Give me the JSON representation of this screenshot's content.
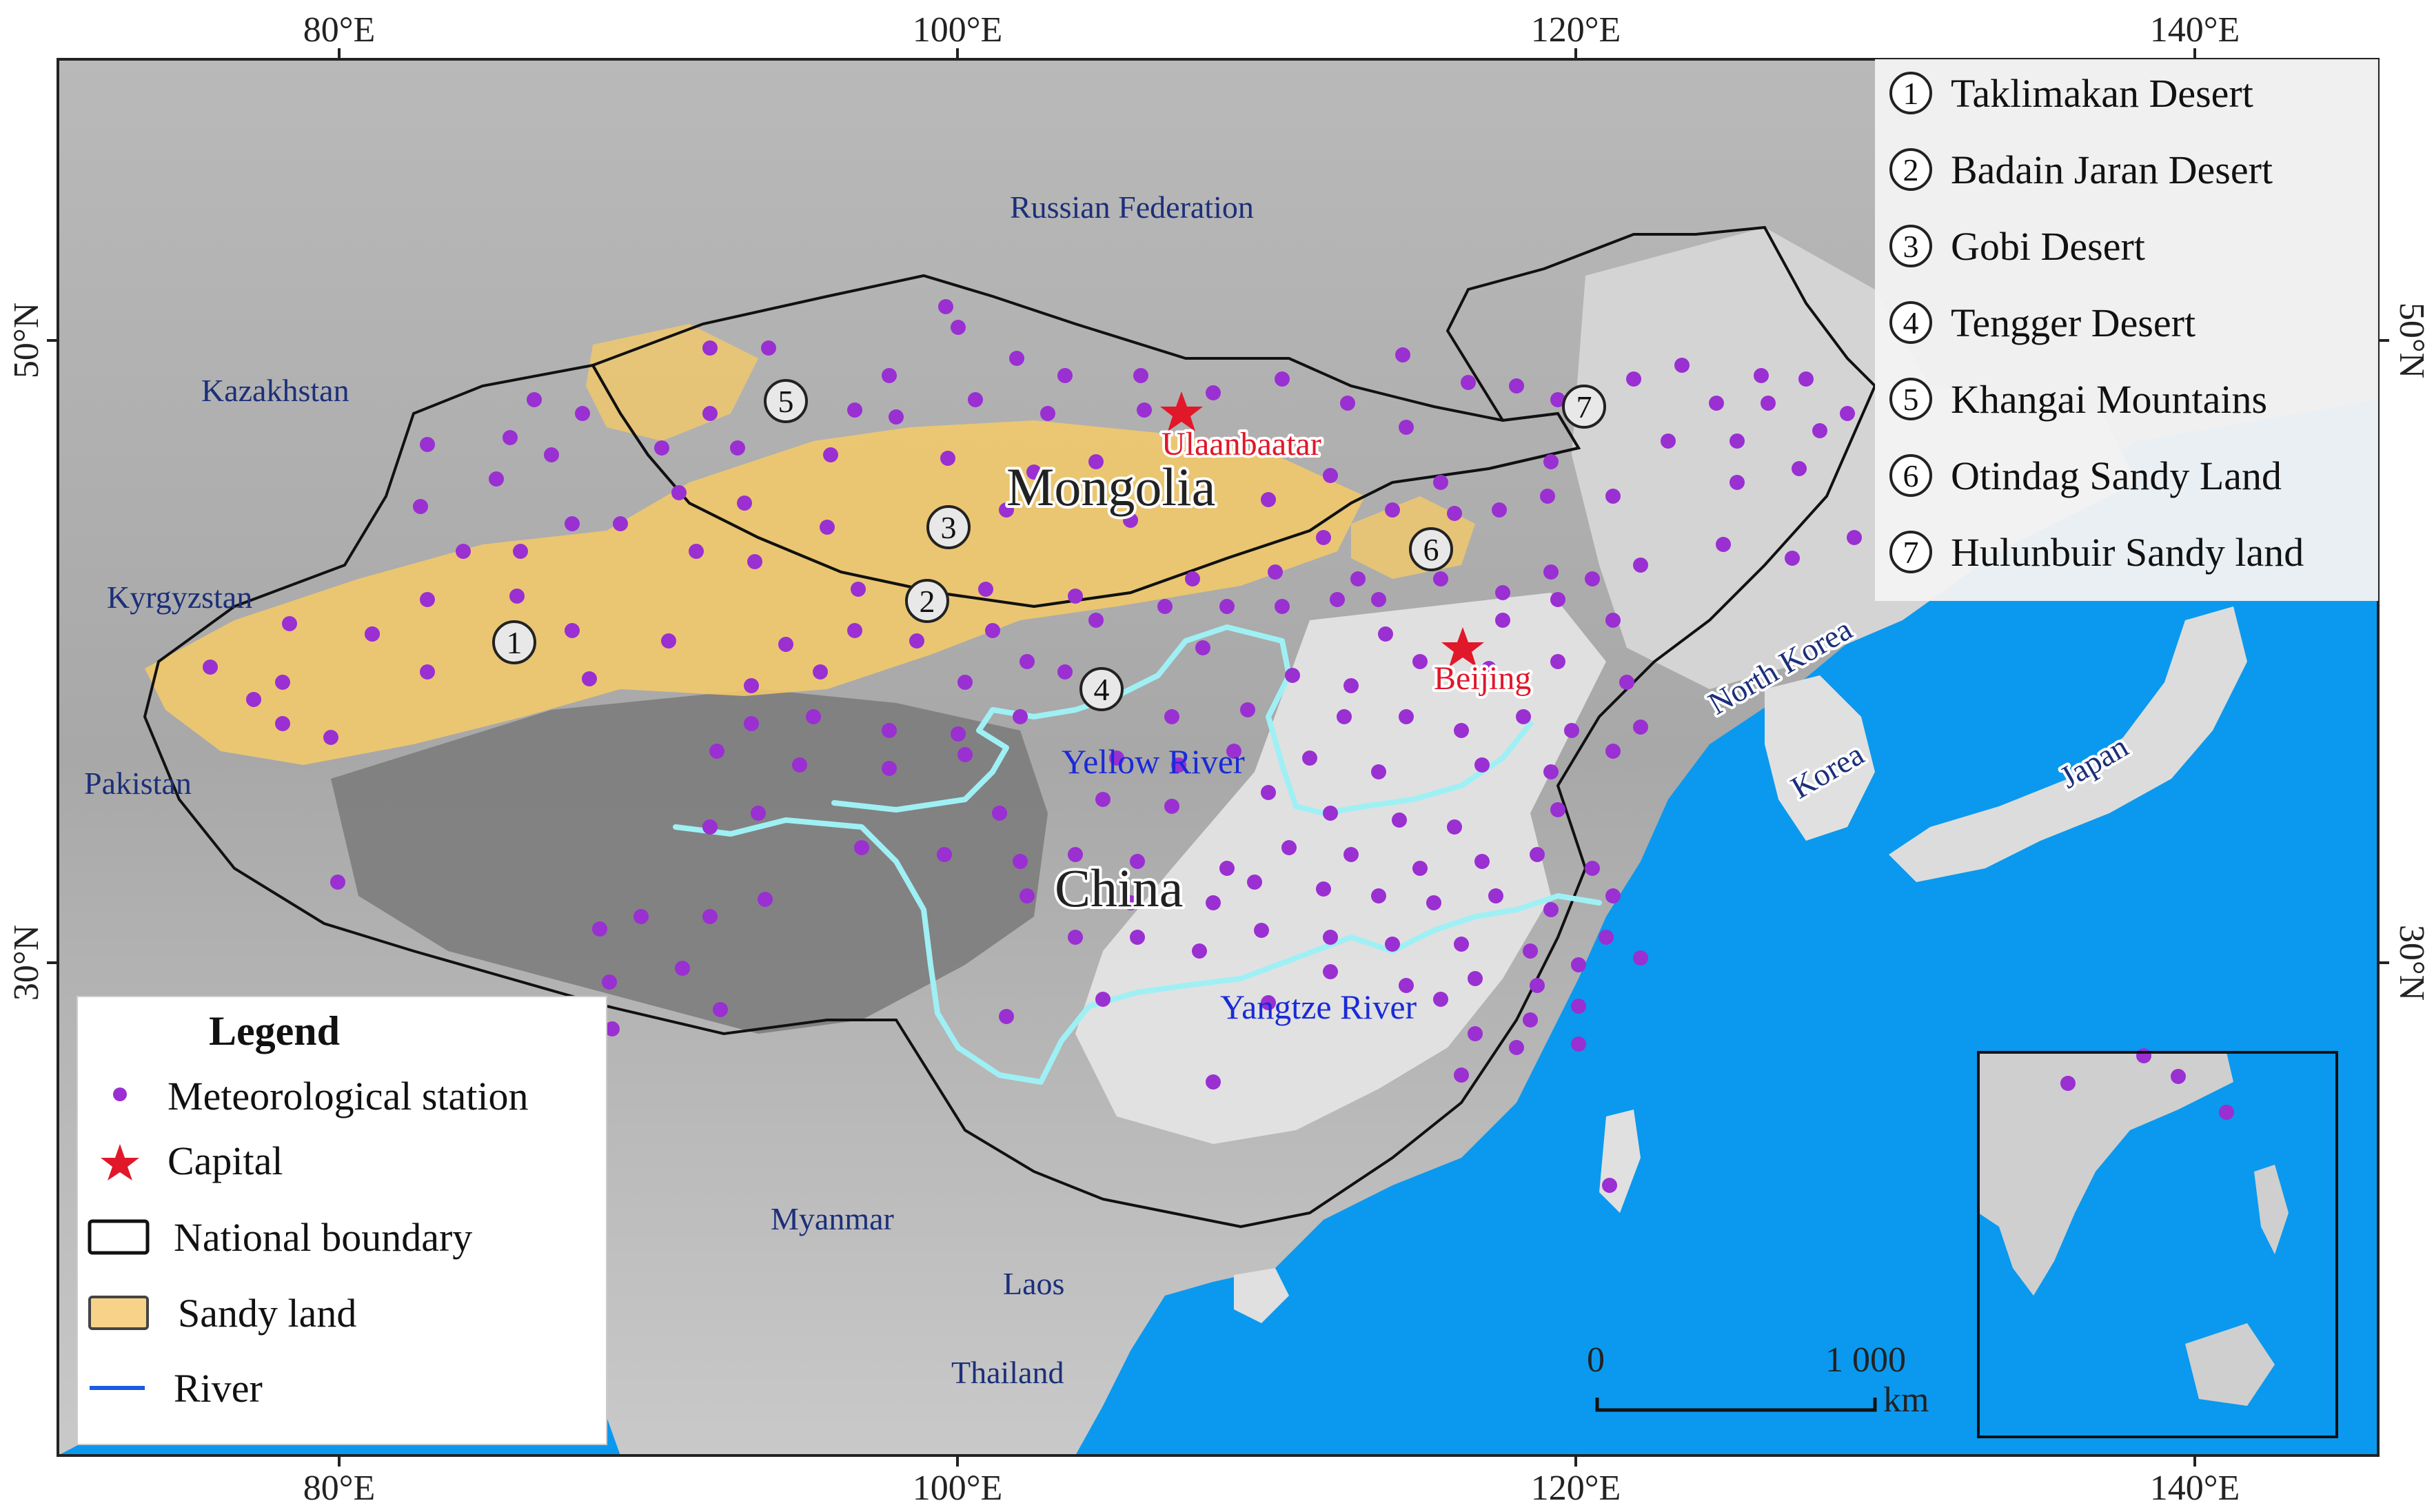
{
  "map": {
    "lon_ticks": [
      "80°E",
      "100°E",
      "120°E",
      "140°E"
    ],
    "lat_ticks": [
      "50°N",
      "30°N"
    ],
    "countries": [
      "Russian Federation",
      "Kazakhstan",
      "Kyrgyzstan",
      "Pakistan",
      "Myanmar",
      "Laos",
      "Thailand",
      "North Korea",
      "Korea",
      "Japan"
    ],
    "main_labels": {
      "mongolia": "Mongolia",
      "china": "China"
    },
    "capitals": [
      "Ulaanbaatar",
      "Beijing"
    ],
    "rivers": {
      "yellow": "Yellow River",
      "yangtze": "Yangtze River"
    },
    "region_markers": [
      "1",
      "2",
      "3",
      "4",
      "5",
      "6",
      "7"
    ],
    "scale_bar": {
      "zero": "0",
      "max": "1 000",
      "unit": "km"
    },
    "colors": {
      "ocean": "#0a99ee",
      "sandy_land": "#f2c96a",
      "station": "#9a2fd2",
      "capital": "#e0182a",
      "river": "#9ff0f4",
      "boundary": "#111111"
    }
  },
  "region_list": [
    {
      "num": "1",
      "name": "Taklimakan Desert"
    },
    {
      "num": "2",
      "name": "Badain Jaran Desert"
    },
    {
      "num": "3",
      "name": "Gobi Desert"
    },
    {
      "num": "4",
      "name": "Tengger Desert"
    },
    {
      "num": "5",
      "name": "Khangai Mountains"
    },
    {
      "num": "6",
      "name": "Otindag Sandy Land"
    },
    {
      "num": "7",
      "name": "Hulunbuir Sandy land"
    }
  ],
  "legend": {
    "title": "Legend",
    "items": {
      "station": "Meteorological station",
      "capital": "Capital",
      "boundary": "National boundary",
      "sandy": "Sandy land",
      "river": "River"
    }
  }
}
